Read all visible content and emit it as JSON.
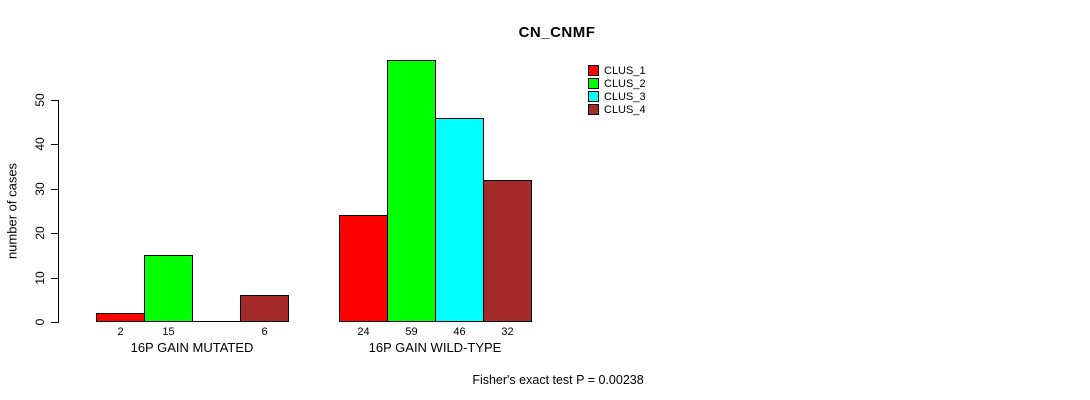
{
  "chart_data": {
    "type": "bar",
    "title": "CN_CNMF",
    "xlabel": "",
    "ylabel": "number of cases",
    "ylim": [
      0,
      59.5
    ],
    "yticks": [
      0,
      10,
      20,
      30,
      40,
      50
    ],
    "grid": false,
    "categories": [
      "16P GAIN MUTATED",
      "16P GAIN WILD-TYPE"
    ],
    "series": [
      {
        "name": "CLUS_1",
        "color": "#FF0000",
        "values": [
          2,
          24
        ]
      },
      {
        "name": "CLUS_2",
        "color": "#00FF00",
        "values": [
          15,
          59
        ]
      },
      {
        "name": "CLUS_3",
        "color": "#00FFFF",
        "values": [
          0,
          46
        ]
      },
      {
        "name": "CLUS_4",
        "color": "#A52A2A",
        "values": [
          6,
          32
        ]
      }
    ],
    "bar_value_labels": [
      [
        "2",
        "15",
        "",
        "6"
      ],
      [
        "24",
        "59",
        "46",
        "32"
      ]
    ],
    "legend_position": "top-right",
    "legend_entries": [
      "CLUS_1",
      "CLUS_2",
      "CLUS_3",
      "CLUS_4"
    ],
    "annotation": "Fisher's exact test P = 0.00238"
  }
}
